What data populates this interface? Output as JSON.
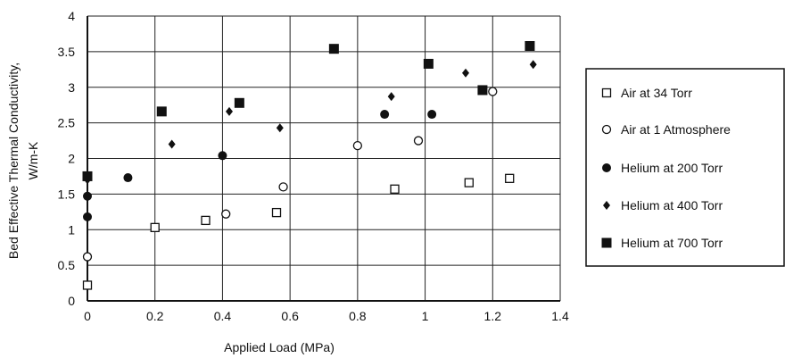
{
  "chart_data": {
    "type": "scatter",
    "title": "",
    "xlabel": "Applied Load (MPa)",
    "ylabel_lines": [
      "Bed Effective Thermal Conductivity,",
      "W/m-K"
    ],
    "xlim": [
      0,
      1.4
    ],
    "ylim": [
      0,
      4
    ],
    "x_ticks": [
      "0",
      "0.2",
      "0.4",
      "0.6",
      "0.8",
      "1",
      "1.2",
      "1.4"
    ],
    "y_ticks": [
      "0",
      "0.5",
      "1",
      "1.5",
      "2",
      "2.5",
      "3",
      "3.5",
      "4"
    ],
    "grid": true,
    "legend_position": "right",
    "series": [
      {
        "name": "Air at 34 Torr",
        "marker": "open-square",
        "x": [
          0,
          0.2,
          0.35,
          0.56,
          0.91,
          1.13,
          1.25
        ],
        "y": [
          0.22,
          1.03,
          1.13,
          1.24,
          1.57,
          1.66,
          1.72
        ]
      },
      {
        "name": "Air at 1 Atmosphere",
        "marker": "open-circle",
        "x": [
          0,
          0.41,
          0.58,
          0.8,
          0.98,
          1.2
        ],
        "y": [
          0.62,
          1.22,
          1.6,
          2.18,
          2.25,
          2.94
        ]
      },
      {
        "name": "Helium at 200 Torr",
        "marker": "filled-circle",
        "x": [
          0,
          0,
          0.12,
          0.4,
          0.88,
          1.02
        ],
        "y": [
          1.18,
          1.47,
          1.73,
          2.04,
          2.62,
          2.62
        ]
      },
      {
        "name": "Helium at 400 Torr",
        "marker": "filled-diamond",
        "x": [
          0,
          0.25,
          0.42,
          0.57,
          0.9,
          1.12,
          1.32
        ],
        "y": [
          1.7,
          2.2,
          2.66,
          2.43,
          2.87,
          3.2,
          3.32
        ]
      },
      {
        "name": "Helium at 700 Torr",
        "marker": "filled-square",
        "x": [
          0,
          0.22,
          0.45,
          0.73,
          1.01,
          1.17,
          1.31
        ],
        "y": [
          1.75,
          2.66,
          2.78,
          3.54,
          3.33,
          2.96,
          3.58
        ]
      }
    ]
  }
}
